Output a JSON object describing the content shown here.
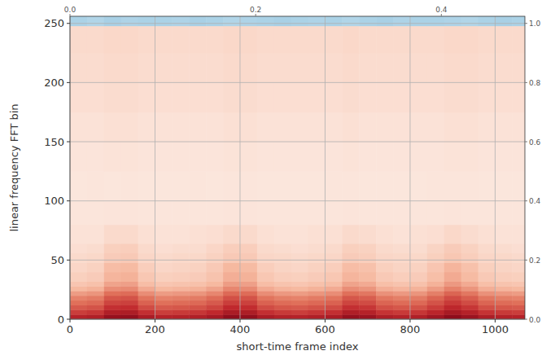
{
  "chart_data": {
    "type": "heatmap",
    "x_label": "short-time frame index",
    "y_label": "linear frequency FFT bin",
    "xlim": [
      0,
      1070
    ],
    "xticks": [
      0,
      200,
      400,
      600,
      800,
      1000
    ],
    "ylim": [
      0,
      256
    ],
    "yticks": [
      0,
      50,
      100,
      150,
      200,
      250
    ],
    "x2lim": [
      0,
      0.49
    ],
    "x2ticks": [
      {
        "value": 0,
        "label": "0.0"
      },
      {
        "value": 0.2,
        "label": "0.2"
      },
      {
        "value": 0.4,
        "label": "0.4"
      }
    ],
    "y2lim": [
      0,
      1.024
    ],
    "y2ticks": [
      {
        "value": 0,
        "label": "0.0"
      },
      {
        "value": 0.2,
        "label": "0.2"
      },
      {
        "value": 0.4,
        "label": "0.4"
      },
      {
        "value": 0.6,
        "label": "0.6"
      },
      {
        "value": 0.8,
        "label": "0.8"
      },
      {
        "value": 1.0,
        "label": "1.0"
      }
    ],
    "grid": true,
    "zlim": [
      -1,
      1
    ],
    "x_edges": [
      0,
      40,
      80,
      120,
      160,
      200,
      240,
      280,
      320,
      360,
      400,
      440,
      480,
      520,
      560,
      600,
      640,
      680,
      720,
      760,
      800,
      840,
      880,
      920,
      960,
      1000,
      1040,
      1080
    ],
    "y_edges": [
      0,
      4,
      8,
      12,
      16,
      20,
      24,
      28,
      32,
      40,
      48,
      56,
      64,
      80,
      100,
      125,
      150,
      175,
      200,
      225,
      248,
      256
    ],
    "cells": [
      [
        0.84,
        0.86,
        0.96,
        0.97,
        0.88,
        0.84,
        0.85,
        0.86,
        0.9,
        0.98,
        0.97,
        0.88,
        0.85,
        0.84,
        0.86,
        0.88,
        0.96,
        0.94,
        0.87,
        0.85,
        0.86,
        0.92,
        0.99,
        0.94,
        0.87,
        0.85,
        0.84
      ],
      [
        0.74,
        0.76,
        0.86,
        0.87,
        0.78,
        0.74,
        0.75,
        0.76,
        0.8,
        0.88,
        0.87,
        0.78,
        0.75,
        0.74,
        0.76,
        0.78,
        0.86,
        0.84,
        0.77,
        0.75,
        0.76,
        0.82,
        0.89,
        0.84,
        0.77,
        0.75,
        0.74
      ],
      [
        0.66,
        0.68,
        0.78,
        0.79,
        0.7,
        0.66,
        0.67,
        0.68,
        0.72,
        0.8,
        0.79,
        0.7,
        0.67,
        0.66,
        0.68,
        0.7,
        0.78,
        0.76,
        0.69,
        0.67,
        0.68,
        0.74,
        0.81,
        0.76,
        0.69,
        0.67,
        0.66
      ],
      [
        0.6,
        0.62,
        0.72,
        0.73,
        0.64,
        0.6,
        0.61,
        0.62,
        0.66,
        0.74,
        0.73,
        0.64,
        0.61,
        0.6,
        0.62,
        0.64,
        0.72,
        0.7,
        0.63,
        0.61,
        0.62,
        0.68,
        0.75,
        0.7,
        0.63,
        0.61,
        0.6
      ],
      [
        0.55,
        0.57,
        0.67,
        0.68,
        0.59,
        0.55,
        0.56,
        0.57,
        0.61,
        0.69,
        0.68,
        0.59,
        0.56,
        0.55,
        0.57,
        0.59,
        0.67,
        0.65,
        0.58,
        0.56,
        0.57,
        0.63,
        0.7,
        0.65,
        0.58,
        0.56,
        0.55
      ],
      [
        0.48,
        0.5,
        0.6,
        0.61,
        0.52,
        0.48,
        0.49,
        0.5,
        0.54,
        0.62,
        0.61,
        0.52,
        0.49,
        0.48,
        0.5,
        0.52,
        0.6,
        0.58,
        0.51,
        0.49,
        0.5,
        0.56,
        0.63,
        0.58,
        0.51,
        0.49,
        0.48
      ],
      [
        0.4,
        0.42,
        0.52,
        0.53,
        0.44,
        0.4,
        0.41,
        0.42,
        0.46,
        0.54,
        0.53,
        0.44,
        0.41,
        0.4,
        0.42,
        0.44,
        0.52,
        0.5,
        0.43,
        0.41,
        0.42,
        0.48,
        0.55,
        0.5,
        0.43,
        0.41,
        0.4
      ],
      [
        0.34,
        0.36,
        0.46,
        0.47,
        0.38,
        0.34,
        0.35,
        0.36,
        0.4,
        0.48,
        0.47,
        0.38,
        0.35,
        0.34,
        0.36,
        0.38,
        0.46,
        0.44,
        0.37,
        0.35,
        0.36,
        0.42,
        0.49,
        0.44,
        0.37,
        0.35,
        0.34
      ],
      [
        0.29,
        0.31,
        0.41,
        0.42,
        0.33,
        0.29,
        0.3,
        0.31,
        0.35,
        0.43,
        0.42,
        0.33,
        0.3,
        0.29,
        0.31,
        0.33,
        0.41,
        0.39,
        0.32,
        0.3,
        0.31,
        0.37,
        0.44,
        0.39,
        0.32,
        0.3,
        0.29
      ],
      [
        0.26,
        0.28,
        0.38,
        0.39,
        0.3,
        0.26,
        0.27,
        0.28,
        0.32,
        0.4,
        0.39,
        0.3,
        0.27,
        0.26,
        0.28,
        0.3,
        0.38,
        0.36,
        0.29,
        0.27,
        0.28,
        0.34,
        0.41,
        0.36,
        0.29,
        0.27,
        0.26
      ],
      [
        0.24,
        0.25,
        0.31,
        0.32,
        0.26,
        0.24,
        0.25,
        0.25,
        0.28,
        0.32,
        0.32,
        0.26,
        0.25,
        0.24,
        0.25,
        0.26,
        0.31,
        0.3,
        0.26,
        0.25,
        0.25,
        0.29,
        0.33,
        0.3,
        0.26,
        0.25,
        0.24
      ],
      [
        0.22,
        0.23,
        0.29,
        0.3,
        0.24,
        0.22,
        0.23,
        0.23,
        0.26,
        0.3,
        0.3,
        0.24,
        0.23,
        0.22,
        0.23,
        0.24,
        0.29,
        0.28,
        0.24,
        0.23,
        0.23,
        0.27,
        0.31,
        0.28,
        0.24,
        0.23,
        0.22
      ],
      [
        0.2,
        0.2,
        0.24,
        0.24,
        0.21,
        0.2,
        0.2,
        0.21,
        0.22,
        0.24,
        0.24,
        0.21,
        0.2,
        0.2,
        0.21,
        0.21,
        0.24,
        0.23,
        0.21,
        0.2,
        0.21,
        0.22,
        0.25,
        0.23,
        0.21,
        0.2,
        0.2
      ],
      [
        0.17,
        0.17,
        0.18,
        0.18,
        0.17,
        0.17,
        0.17,
        0.17,
        0.17,
        0.18,
        0.18,
        0.17,
        0.17,
        0.17,
        0.17,
        0.17,
        0.18,
        0.17,
        0.17,
        0.17,
        0.17,
        0.17,
        0.18,
        0.17,
        0.17,
        0.17,
        0.17
      ],
      [
        0.16,
        0.17,
        0.16,
        0.17,
        0.16,
        0.16,
        0.16,
        0.17,
        0.16,
        0.17,
        0.17,
        0.16,
        0.16,
        0.16,
        0.16,
        0.17,
        0.17,
        0.16,
        0.16,
        0.16,
        0.16,
        0.17,
        0.17,
        0.17,
        0.16,
        0.16,
        0.16
      ],
      [
        0.18,
        0.18,
        0.19,
        0.19,
        0.18,
        0.18,
        0.18,
        0.18,
        0.18,
        0.19,
        0.19,
        0.18,
        0.18,
        0.18,
        0.18,
        0.18,
        0.19,
        0.18,
        0.18,
        0.18,
        0.18,
        0.18,
        0.19,
        0.19,
        0.18,
        0.18,
        0.18
      ],
      [
        0.2,
        0.2,
        0.21,
        0.21,
        0.2,
        0.2,
        0.2,
        0.2,
        0.2,
        0.21,
        0.21,
        0.2,
        0.2,
        0.2,
        0.2,
        0.2,
        0.21,
        0.2,
        0.2,
        0.2,
        0.2,
        0.2,
        0.21,
        0.21,
        0.2,
        0.2,
        0.2
      ],
      [
        0.22,
        0.22,
        0.23,
        0.23,
        0.22,
        0.22,
        0.22,
        0.22,
        0.22,
        0.23,
        0.23,
        0.22,
        0.22,
        0.22,
        0.22,
        0.22,
        0.23,
        0.22,
        0.22,
        0.22,
        0.22,
        0.22,
        0.23,
        0.23,
        0.22,
        0.22,
        0.22
      ],
      [
        0.23,
        0.23,
        0.24,
        0.24,
        0.23,
        0.23,
        0.23,
        0.23,
        0.23,
        0.24,
        0.24,
        0.23,
        0.23,
        0.23,
        0.23,
        0.23,
        0.24,
        0.23,
        0.23,
        0.23,
        0.23,
        0.23,
        0.24,
        0.24,
        0.23,
        0.23,
        0.23
      ],
      [
        0.24,
        0.24,
        0.25,
        0.25,
        0.24,
        0.24,
        0.24,
        0.24,
        0.24,
        0.25,
        0.25,
        0.24,
        0.24,
        0.24,
        0.24,
        0.24,
        0.25,
        0.24,
        0.24,
        0.24,
        0.24,
        0.24,
        0.25,
        0.25,
        0.24,
        0.24,
        0.24
      ],
      [
        -0.35,
        -0.33,
        -0.36,
        -0.34,
        -0.35,
        -0.35,
        -0.34,
        -0.36,
        -0.35,
        -0.33,
        -0.34,
        -0.35,
        -0.36,
        -0.35,
        -0.34,
        -0.35,
        -0.33,
        -0.35,
        -0.36,
        -0.34,
        -0.35,
        -0.35,
        -0.34,
        -0.33,
        -0.35,
        -0.36,
        -0.35
      ]
    ]
  }
}
